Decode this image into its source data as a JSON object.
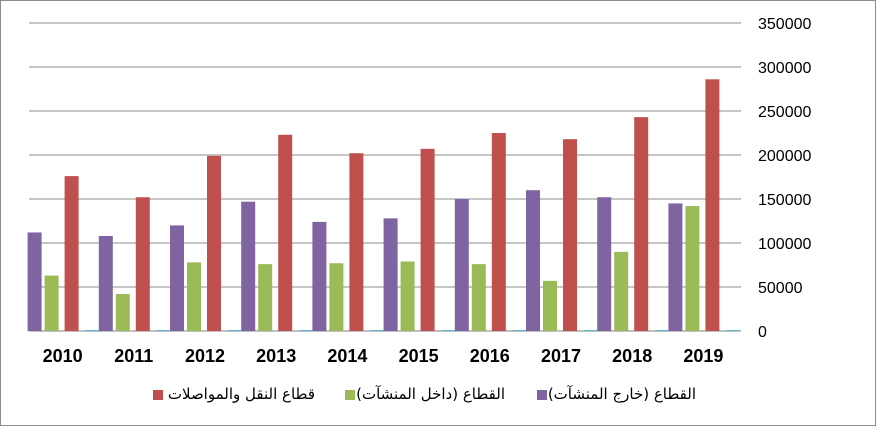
{
  "chart_data": {
    "type": "bar",
    "categories": [
      "2010",
      "2011",
      "2012",
      "2013",
      "2014",
      "2015",
      "2016",
      "2017",
      "2018",
      "2019"
    ],
    "series": [
      {
        "name": "القطاع (خارج المنشآت)",
        "color": "#8064a2",
        "values": [
          112000,
          108000,
          120000,
          147000,
          124000,
          128000,
          150000,
          160000,
          152000,
          145000
        ]
      },
      {
        "name": "القطاع (داخل المنشآت)",
        "color": "#9bbb59",
        "values": [
          63000,
          42000,
          78000,
          76000,
          77000,
          79000,
          76000,
          57000,
          90000,
          142000
        ]
      },
      {
        "name": "قطاع النقل والمواصلات",
        "color": "#c0504d",
        "values": [
          176000,
          152000,
          199000,
          223000,
          202000,
          207000,
          225000,
          218000,
          243000,
          286000
        ]
      },
      {
        "name": "",
        "color": "#4bacc6",
        "values": [
          1000,
          1000,
          1000,
          1000,
          1000,
          1000,
          1000,
          1000,
          1000,
          1000
        ]
      }
    ],
    "yticks": [
      "0",
      "50000",
      "100000",
      "150000",
      "200000",
      "250000",
      "300000",
      "350000"
    ],
    "ylim": [
      0,
      350000
    ],
    "y_axis_position": "right",
    "grid": true,
    "legend_position": "bottom",
    "title": "",
    "xlabel": "",
    "ylabel": ""
  }
}
